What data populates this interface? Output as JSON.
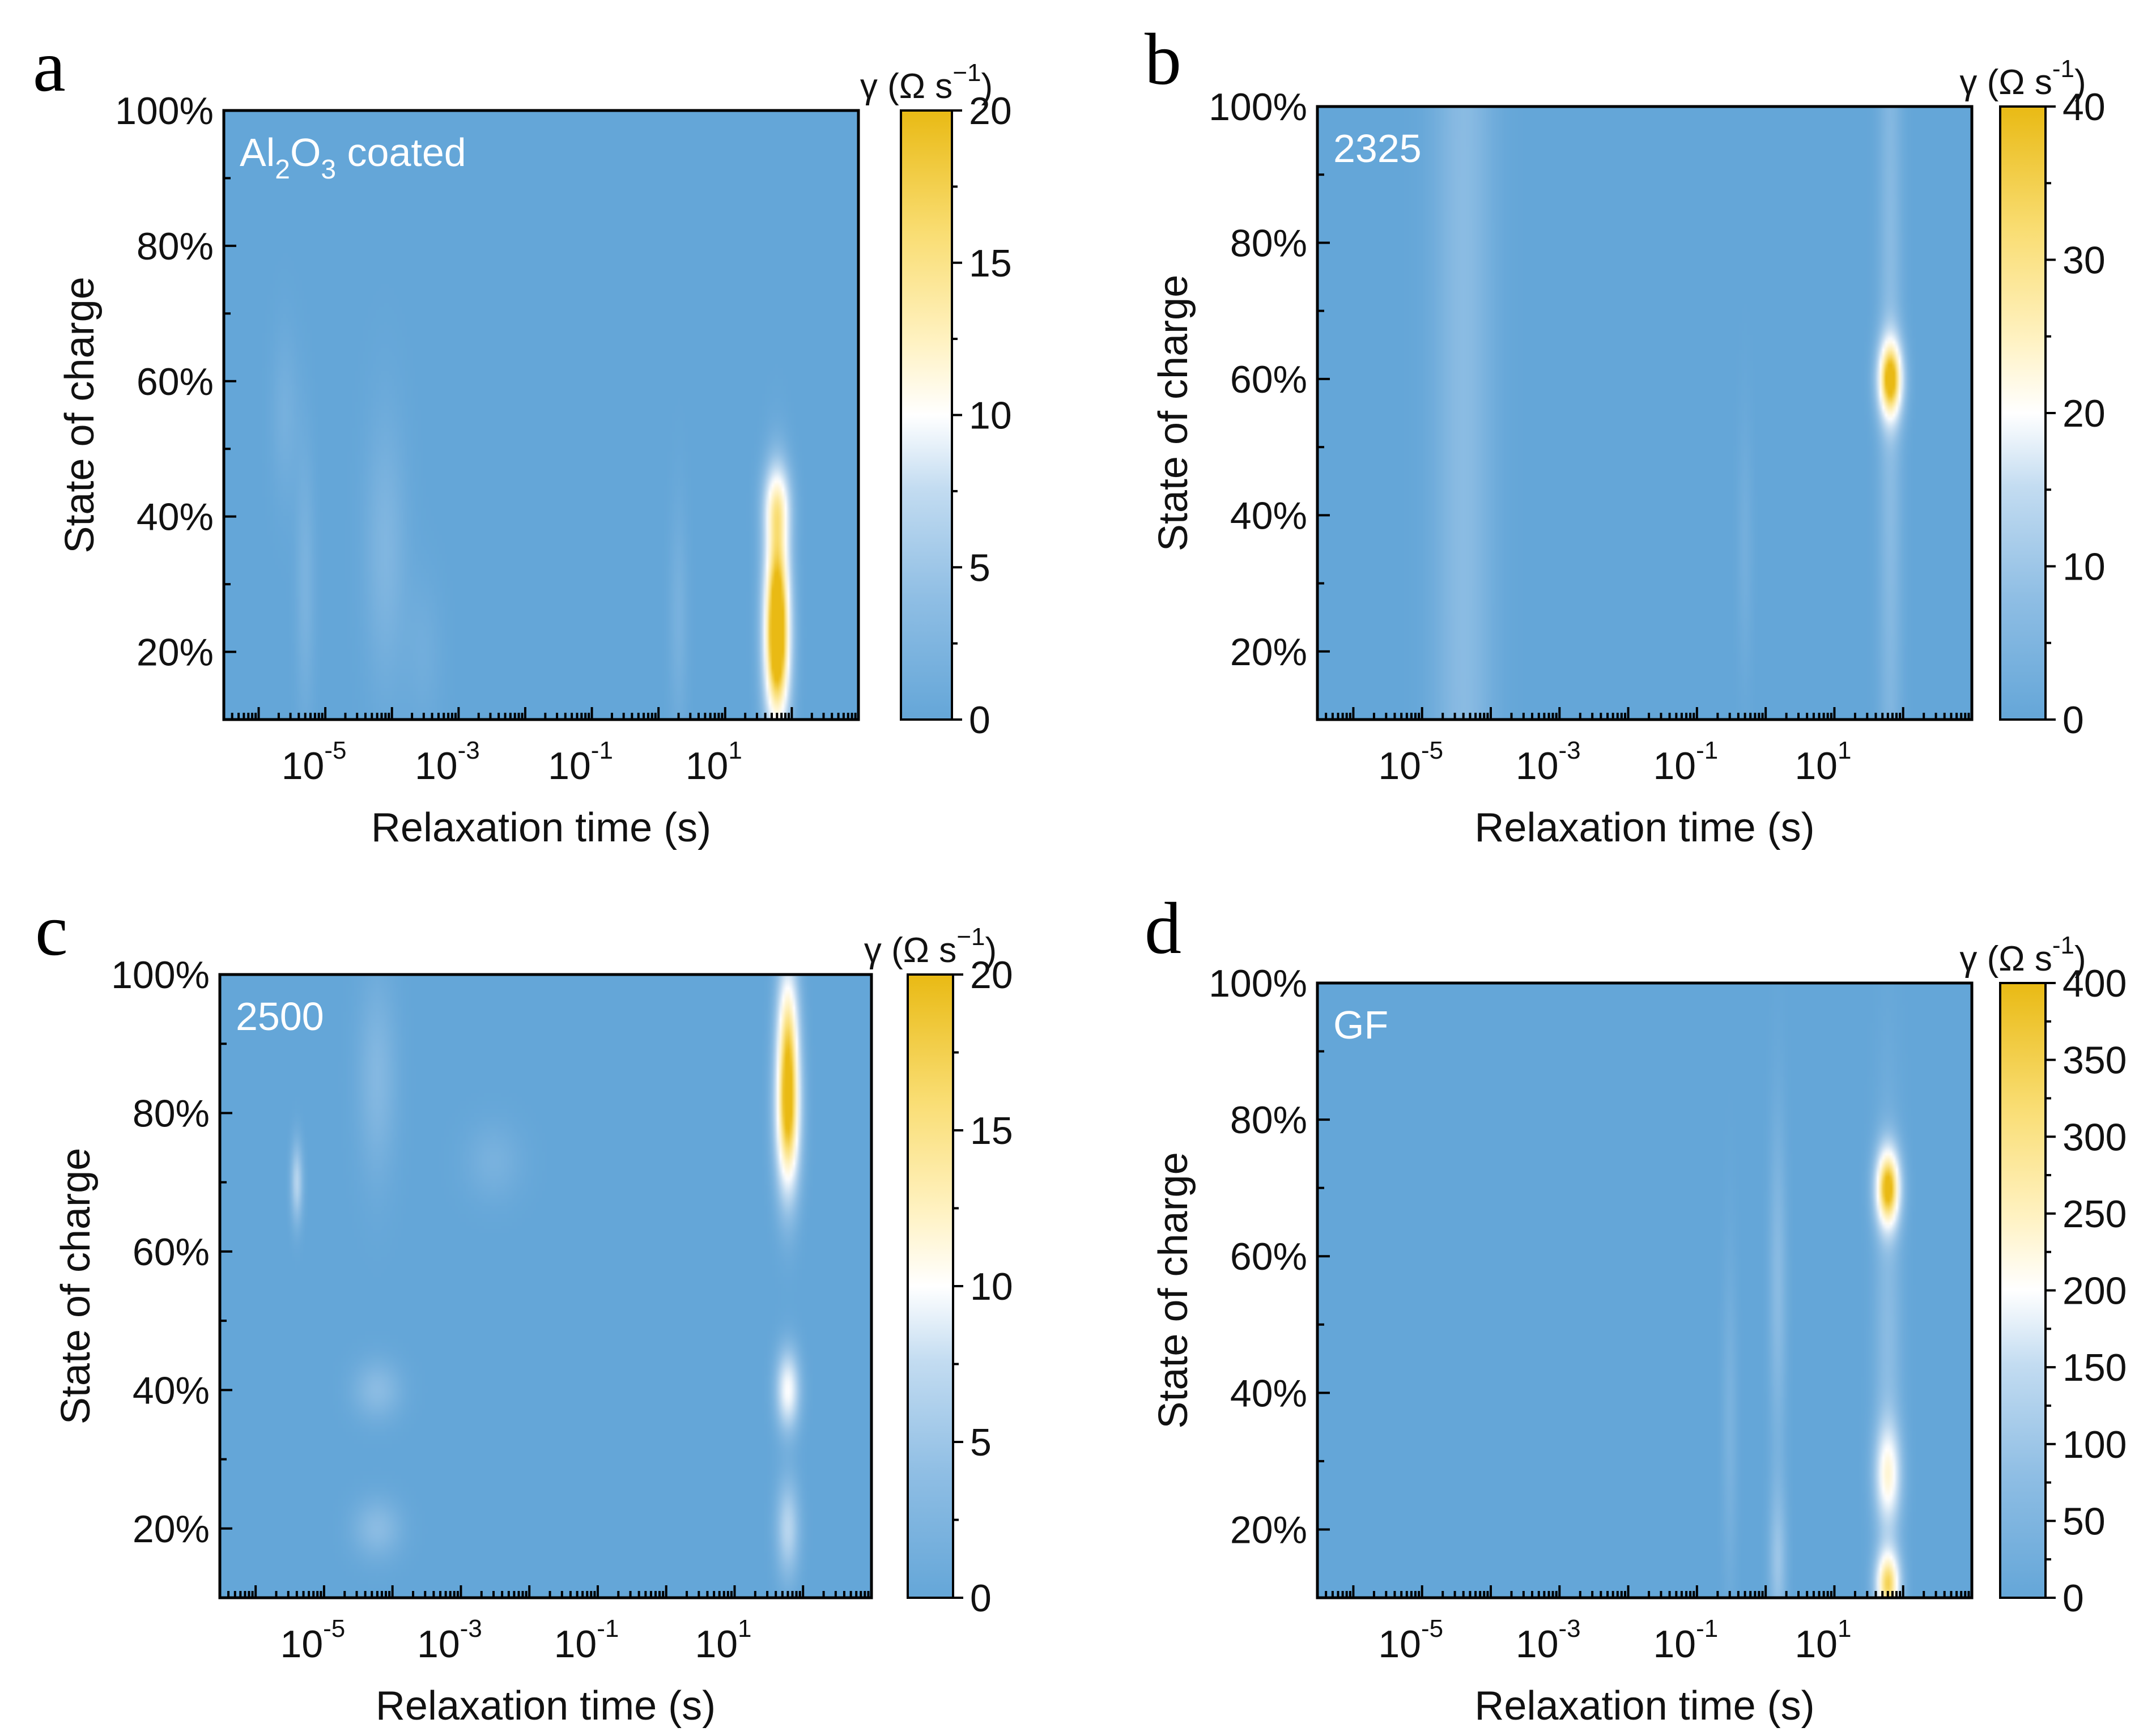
{
  "figure": {
    "colormap": [
      "#64a6d8",
      "#8fbee4",
      "#c3dcf1",
      "#ffffff",
      "#fff2c2",
      "#f9dd72",
      "#e9ba14"
    ],
    "plot_background": "#64a6d8"
  },
  "chart_data": [
    {
      "panel": "a",
      "type": "heatmap",
      "label": "Al₂O₃ coated",
      "label_main_1": "Al",
      "label_sub_1": "2",
      "label_main_2": "O",
      "label_sub_2": "3",
      "label_main_3": " coated",
      "xlabel": "Relaxation time (s)",
      "ylabel": "State of charge",
      "x_scale": "log",
      "xlim": [
        3e-07,
        1000
      ],
      "ylim": [
        10,
        100
      ],
      "x_ticks": [
        {
          "base": "10",
          "exp": "-5",
          "value": 1e-05
        },
        {
          "base": "10",
          "exp": "-3",
          "value": 0.001
        },
        {
          "base": "10",
          "exp": "-1",
          "value": 0.1
        },
        {
          "base": "10",
          "exp": "1",
          "value": 10
        }
      ],
      "y_ticks": [
        {
          "label": "20%",
          "value": 20
        },
        {
          "label": "40%",
          "value": 40
        },
        {
          "label": "60%",
          "value": 60
        },
        {
          "label": "80%",
          "value": 80
        },
        {
          "label": "100%",
          "value": 100
        }
      ],
      "colorbar": {
        "title_main": "γ (Ω s",
        "title_exp": "−1",
        "title_close": ")",
        "min": 0,
        "max": 20,
        "ticks": [
          {
            "label": "0",
            "value": 0
          },
          {
            "label": "5",
            "value": 5
          },
          {
            "label": "10",
            "value": 10
          },
          {
            "label": "15",
            "value": 15
          },
          {
            "label": "20",
            "value": 20
          }
        ]
      },
      "features": [
        {
          "x": 60,
          "y": 20,
          "peak": 20,
          "sx": 0.13,
          "sy": 8
        },
        {
          "x": 60,
          "y": 32,
          "peak": 13,
          "sx": 0.13,
          "sy": 9
        },
        {
          "x": 60,
          "y": 42,
          "peak": 8,
          "sx": 0.14,
          "sy": 4
        },
        {
          "x": 8e-05,
          "y": 35,
          "peak": 2.2,
          "sx": 0.22,
          "sy": 14
        },
        {
          "x": 5e-06,
          "y": 30,
          "peak": 1.8,
          "sx": 0.1,
          "sy": 14
        },
        {
          "x": 2.5e-06,
          "y": 55,
          "peak": 1.4,
          "sx": 0.15,
          "sy": 9
        },
        {
          "x": 2.0,
          "y": 25,
          "peak": 1.6,
          "sx": 0.1,
          "sy": 12
        },
        {
          "x": 0.0003,
          "y": 20,
          "peak": 1.0,
          "sx": 0.2,
          "sy": 8
        }
      ]
    },
    {
      "panel": "b",
      "type": "heatmap",
      "label": "2325",
      "xlabel": "Relaxation time (s)",
      "ylabel": "State of charge",
      "x_scale": "log",
      "xlim": [
        3e-07,
        1000
      ],
      "ylim": [
        10,
        100
      ],
      "x_ticks": [
        {
          "base": "10",
          "exp": "-5",
          "value": 1e-05
        },
        {
          "base": "10",
          "exp": "-3",
          "value": 0.001
        },
        {
          "base": "10",
          "exp": "-1",
          "value": 0.1
        },
        {
          "base": "10",
          "exp": "1",
          "value": 10
        }
      ],
      "y_ticks": [
        {
          "label": "20%",
          "value": 20
        },
        {
          "label": "40%",
          "value": 40
        },
        {
          "label": "60%",
          "value": 60
        },
        {
          "label": "80%",
          "value": 80
        },
        {
          "label": "100%",
          "value": 100
        }
      ],
      "colorbar": {
        "title_main": "γ (Ω s",
        "title_exp": "-1",
        "title_close": ")",
        "min": 0,
        "max": 40,
        "ticks": [
          {
            "label": "0",
            "value": 0
          },
          {
            "label": "10",
            "value": 10
          },
          {
            "label": "20",
            "value": 20
          },
          {
            "label": "30",
            "value": 30
          },
          {
            "label": "40",
            "value": 40
          }
        ]
      },
      "features": [
        {
          "x": 65,
          "y": 60,
          "peak": 40,
          "sx": 0.12,
          "sy": 4
        },
        {
          "x": 65,
          "y": 60,
          "peak": 6,
          "sx": 0.12,
          "sy": 60
        },
        {
          "x": 4e-05,
          "y": 55,
          "peak": 6,
          "sx": 0.3,
          "sy": 200
        },
        {
          "x": 0.5,
          "y": 35,
          "peak": 2.5,
          "sx": 0.08,
          "sy": 14
        }
      ]
    },
    {
      "panel": "c",
      "type": "heatmap",
      "label": "2500",
      "xlabel": "Relaxation time (s)",
      "ylabel": "State of charge",
      "x_scale": "log",
      "xlim": [
        3e-07,
        1000
      ],
      "ylim": [
        10,
        100
      ],
      "x_ticks": [
        {
          "base": "10",
          "exp": "-5",
          "value": 1e-05
        },
        {
          "base": "10",
          "exp": "-3",
          "value": 0.001
        },
        {
          "base": "10",
          "exp": "-1",
          "value": 0.1
        },
        {
          "base": "10",
          "exp": "1",
          "value": 10
        }
      ],
      "y_ticks": [
        {
          "label": "20%",
          "value": 20
        },
        {
          "label": "40%",
          "value": 40
        },
        {
          "label": "60%",
          "value": 60
        },
        {
          "label": "80%",
          "value": 80
        },
        {
          "label": "100%",
          "value": 100
        }
      ],
      "colorbar": {
        "title_main": "γ (Ω s",
        "title_exp": "−1",
        "title_close": ")",
        "min": 0,
        "max": 20,
        "ticks": [
          {
            "label": "0",
            "value": 0
          },
          {
            "label": "5",
            "value": 5
          },
          {
            "label": "10",
            "value": 10
          },
          {
            "label": "15",
            "value": 15
          },
          {
            "label": "20",
            "value": 20
          }
        ]
      },
      "features": [
        {
          "x": 60,
          "y": 80,
          "peak": 20,
          "sx": 0.12,
          "sy": 8
        },
        {
          "x": 60,
          "y": 93,
          "peak": 11,
          "sx": 0.11,
          "sy": 7
        },
        {
          "x": 60,
          "y": 40,
          "peak": 10,
          "sx": 0.12,
          "sy": 4
        },
        {
          "x": 60,
          "y": 20,
          "peak": 6,
          "sx": 0.12,
          "sy": 5
        },
        {
          "x": 4e-06,
          "y": 70,
          "peak": 6,
          "sx": 0.06,
          "sy": 4
        },
        {
          "x": 6e-05,
          "y": 85,
          "peak": 2.5,
          "sx": 0.2,
          "sy": 10
        },
        {
          "x": 6e-05,
          "y": 40,
          "peak": 3,
          "sx": 0.25,
          "sy": 3
        },
        {
          "x": 6e-05,
          "y": 20,
          "peak": 3,
          "sx": 0.25,
          "sy": 3
        },
        {
          "x": 0.003,
          "y": 73,
          "peak": 1.6,
          "sx": 0.3,
          "sy": 4
        }
      ]
    },
    {
      "panel": "d",
      "type": "heatmap",
      "label": "GF",
      "xlabel": "Relaxation time (s)",
      "ylabel": "State of charge",
      "x_scale": "log",
      "xlim": [
        3e-07,
        1000
      ],
      "ylim": [
        10,
        100
      ],
      "x_ticks": [
        {
          "base": "10",
          "exp": "-5",
          "value": 1e-05
        },
        {
          "base": "10",
          "exp": "-3",
          "value": 0.001
        },
        {
          "base": "10",
          "exp": "-1",
          "value": 0.1
        },
        {
          "base": "10",
          "exp": "1",
          "value": 10
        }
      ],
      "y_ticks": [
        {
          "label": "20%",
          "value": 20
        },
        {
          "label": "40%",
          "value": 40
        },
        {
          "label": "60%",
          "value": 60
        },
        {
          "label": "80%",
          "value": 80
        },
        {
          "label": "100%",
          "value": 100
        }
      ],
      "colorbar": {
        "title_main": "γ (Ω s",
        "title_exp": "-1",
        "title_close": ")",
        "min": 0,
        "max": 400,
        "ticks": [
          {
            "label": "0",
            "value": 0
          },
          {
            "label": "50",
            "value": 50
          },
          {
            "label": "100",
            "value": 100
          },
          {
            "label": "150",
            "value": 150
          },
          {
            "label": "200",
            "value": 200
          },
          {
            "label": "250",
            "value": 250
          },
          {
            "label": "300",
            "value": 300
          },
          {
            "label": "350",
            "value": 350
          },
          {
            "label": "400",
            "value": 400
          }
        ]
      },
      "features": [
        {
          "x": 60,
          "y": 70,
          "peak": 400,
          "sx": 0.12,
          "sy": 4
        },
        {
          "x": 60,
          "y": 12,
          "peak": 330,
          "sx": 0.12,
          "sy": 3.5
        },
        {
          "x": 60,
          "y": 28,
          "peak": 200,
          "sx": 0.13,
          "sy": 5
        },
        {
          "x": 60,
          "y": 45,
          "peak": 60,
          "sx": 0.14,
          "sy": 25
        },
        {
          "x": 1.5,
          "y": 55,
          "peak": 60,
          "sx": 0.09,
          "sy": 18
        },
        {
          "x": 1.5,
          "y": 15,
          "peak": 80,
          "sx": 0.09,
          "sy": 8
        },
        {
          "x": 0.3,
          "y": 35,
          "peak": 35,
          "sx": 0.08,
          "sy": 18
        }
      ]
    }
  ]
}
